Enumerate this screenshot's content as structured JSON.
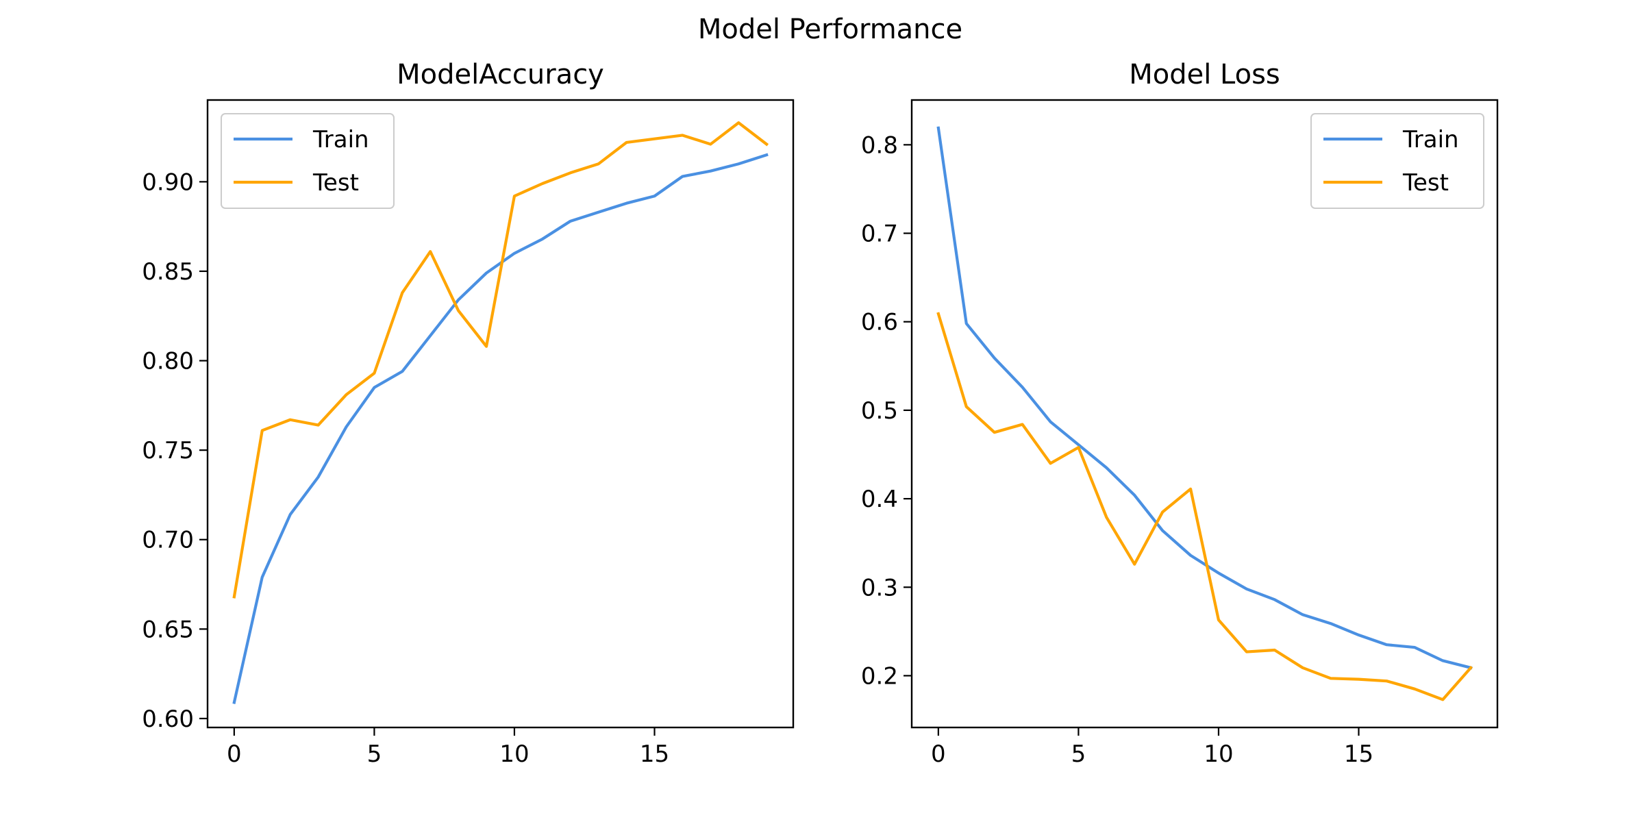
{
  "figure": {
    "suptitle": "Model Performance"
  },
  "chart_data": [
    {
      "type": "line",
      "title": "ModelAccuracy",
      "xlabel": "",
      "ylabel": "",
      "x": [
        0,
        1,
        2,
        3,
        4,
        5,
        6,
        7,
        8,
        9,
        10,
        11,
        12,
        13,
        14,
        15,
        16,
        17,
        18,
        19
      ],
      "xlim": [
        -0.95,
        19.95
      ],
      "ylim": [
        0.595,
        0.9457
      ],
      "xticks": [
        0,
        5,
        10,
        15
      ],
      "xtick_labels": [
        "0",
        "5",
        "10",
        "15"
      ],
      "yticks": [
        0.6,
        0.65,
        0.7,
        0.75,
        0.8,
        0.85,
        0.9
      ],
      "ytick_labels": [
        "0.60",
        "0.65",
        "0.70",
        "0.75",
        "0.80",
        "0.85",
        "0.90"
      ],
      "legend_position": "upper left",
      "grid": false,
      "series": [
        {
          "name": "Train",
          "color": "#4a90e2",
          "values": [
            0.609,
            0.679,
            0.714,
            0.735,
            0.763,
            0.785,
            0.794,
            0.814,
            0.834,
            0.849,
            0.86,
            0.868,
            0.878,
            0.883,
            0.888,
            0.892,
            0.903,
            0.906,
            0.91,
            0.915
          ]
        },
        {
          "name": "Test",
          "color": "#ffa500",
          "values": [
            0.668,
            0.761,
            0.767,
            0.764,
            0.781,
            0.793,
            0.838,
            0.861,
            0.828,
            0.808,
            0.892,
            0.899,
            0.905,
            0.91,
            0.922,
            0.924,
            0.926,
            0.921,
            0.933,
            0.921
          ]
        }
      ]
    },
    {
      "type": "line",
      "title": "Model Loss",
      "xlabel": "",
      "ylabel": "",
      "x": [
        0,
        1,
        2,
        3,
        4,
        5,
        6,
        7,
        8,
        9,
        10,
        11,
        12,
        13,
        14,
        15,
        16,
        17,
        18,
        19
      ],
      "xlim": [
        -0.95,
        19.95
      ],
      "ylim": [
        0.1415,
        0.8506
      ],
      "xticks": [
        0,
        5,
        10,
        15
      ],
      "xtick_labels": [
        "0",
        "5",
        "10",
        "15"
      ],
      "yticks": [
        0.2,
        0.3,
        0.4,
        0.5,
        0.6,
        0.7,
        0.8
      ],
      "ytick_labels": [
        "0.2",
        "0.3",
        "0.4",
        "0.5",
        "0.6",
        "0.7",
        "0.8"
      ],
      "legend_position": "upper right",
      "grid": false,
      "series": [
        {
          "name": "Train",
          "color": "#4a90e2",
          "values": [
            0.819,
            0.598,
            0.559,
            0.526,
            0.487,
            0.461,
            0.435,
            0.404,
            0.364,
            0.336,
            0.316,
            0.298,
            0.286,
            0.269,
            0.259,
            0.246,
            0.235,
            0.232,
            0.217,
            0.209
          ]
        },
        {
          "name": "Test",
          "color": "#ffa500",
          "values": [
            0.609,
            0.504,
            0.475,
            0.484,
            0.44,
            0.458,
            0.379,
            0.326,
            0.385,
            0.411,
            0.263,
            0.227,
            0.229,
            0.209,
            0.197,
            0.196,
            0.194,
            0.185,
            0.173,
            0.209
          ]
        }
      ]
    }
  ]
}
